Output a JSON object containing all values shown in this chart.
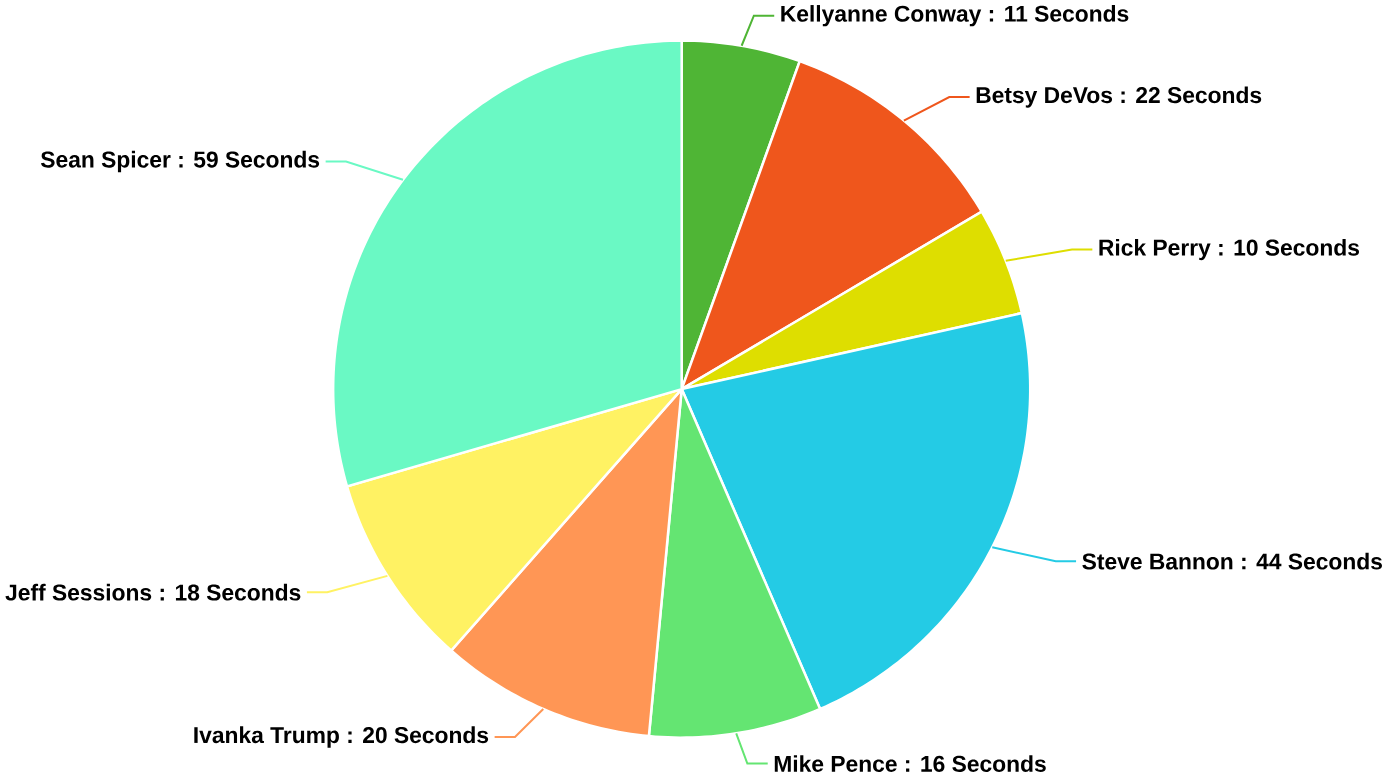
{
  "chart_data": {
    "type": "pie",
    "categories": [
      "Kellyanne Conway : 11 Seconds",
      "Betsy DeVos : 22 Seconds",
      "Rick Perry : 10 Seconds",
      "Steve Bannon : 44 Seconds",
      "Mike Pence : 16 Seconds",
      "Ivanka Trump : 20 Seconds",
      "Jeff Sessions : 18 Seconds",
      "Sean Spicer : 59 Seconds"
    ],
    "values": [
      11,
      22,
      10,
      44,
      16,
      20,
      18,
      59
    ],
    "colors": [
      "#4fb535",
      "#ef561c",
      "#dede00",
      "#24cbe5",
      "#64e572",
      "#ff9655",
      "#fff263",
      "#6af9c4"
    ]
  }
}
